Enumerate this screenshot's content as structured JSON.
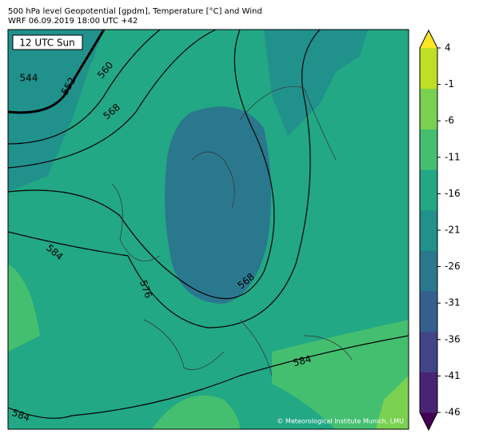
{
  "title": [
    "500 hPa level Geopotential [gpdm], Temperature [°C] and Wind",
    "WRF 06.09.2019 18:00 UTC +42"
  ],
  "time_label": "12 UTC Sun",
  "contour_labels": [
    "544",
    "552",
    "560",
    "568",
    "576",
    "584",
    "568",
    "584",
    "584"
  ],
  "credit": "© Meteorological Institute Munich, LMU",
  "colorbar": {
    "lim": [
      -46,
      4
    ],
    "ticks": [
      4,
      -1,
      -6,
      -11,
      -16,
      -21,
      -26,
      -31,
      -36,
      -41,
      -46
    ],
    "colors": [
      "#440154",
      "#482475",
      "#414487",
      "#355f8d",
      "#2a788e",
      "#21918c",
      "#22a884",
      "#44bf70",
      "#7ad151",
      "#bddf26",
      "#fde725"
    ]
  }
}
